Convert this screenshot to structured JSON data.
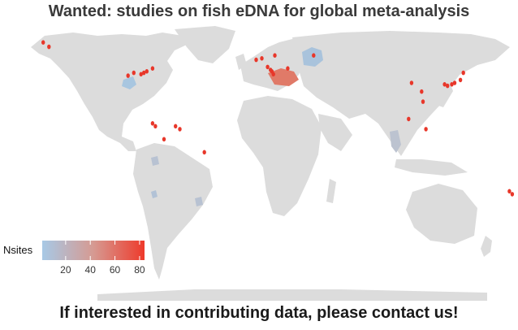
{
  "title": "Wanted: studies on fish eDNA for global meta-analysis",
  "footer": "If interested in contributing data, please contact us!",
  "colors": {
    "land": "#dcdcdc",
    "low": "#a7c9e6",
    "high": "#ee3a2b",
    "point": "#e8372a"
  },
  "legend": {
    "title": "Nsites",
    "ticks": [
      "20",
      "40",
      "60",
      "80"
    ],
    "tick_values": [
      20,
      40,
      60,
      80
    ],
    "min": 1,
    "max": 84
  },
  "shaded_regions": [
    {
      "region": "Great Lakes region (North America)",
      "color_level": "low"
    },
    {
      "region": "Western Russia",
      "color_level": "low"
    },
    {
      "region": "Danube basin (Central Europe)",
      "color_level": "high"
    },
    {
      "region": "Mekong basin (Southeast Asia)",
      "color_level": "low"
    },
    {
      "region": "Northern Colombia",
      "color_level": "low"
    },
    {
      "region": "Eastern Brazil",
      "color_level": "low"
    },
    {
      "region": "Central Peru",
      "color_level": "low"
    }
  ],
  "site_points": [
    {
      "lon": -150,
      "lat": 64
    },
    {
      "lon": -146,
      "lat": 61
    },
    {
      "lon": -87,
      "lat": 43
    },
    {
      "lon": -82,
      "lat": 42
    },
    {
      "lon": -80,
      "lat": 43
    },
    {
      "lon": -78,
      "lat": 44
    },
    {
      "lon": -74,
      "lat": 46
    },
    {
      "lon": -91,
      "lat": 41
    },
    {
      "lon": -74,
      "lat": 8
    },
    {
      "lon": -72,
      "lat": 6
    },
    {
      "lon": -58,
      "lat": 6
    },
    {
      "lon": -55,
      "lat": 4
    },
    {
      "lon": -66,
      "lat": -3
    },
    {
      "lon": -38,
      "lat": -12
    },
    {
      "lon": -2,
      "lat": 52
    },
    {
      "lon": 2,
      "lat": 53
    },
    {
      "lon": 6,
      "lat": 47
    },
    {
      "lon": 8,
      "lat": 45
    },
    {
      "lon": 9,
      "lat": 44
    },
    {
      "lon": 10,
      "lat": 42
    },
    {
      "lon": 11,
      "lat": 55
    },
    {
      "lon": 20,
      "lat": 46
    },
    {
      "lon": 38,
      "lat": 55
    },
    {
      "lon": 106,
      "lat": 36
    },
    {
      "lon": 113,
      "lat": 30
    },
    {
      "lon": 114,
      "lat": 23
    },
    {
      "lon": 116,
      "lat": 4
    },
    {
      "lon": 104,
      "lat": 11
    },
    {
      "lon": 129,
      "lat": 35
    },
    {
      "lon": 131,
      "lat": 34
    },
    {
      "lon": 134,
      "lat": 35
    },
    {
      "lon": 136,
      "lat": 36
    },
    {
      "lon": 140,
      "lat": 38
    },
    {
      "lon": 142,
      "lat": 43
    },
    {
      "lon": 174,
      "lat": -39
    },
    {
      "lon": 176,
      "lat": -41
    }
  ]
}
